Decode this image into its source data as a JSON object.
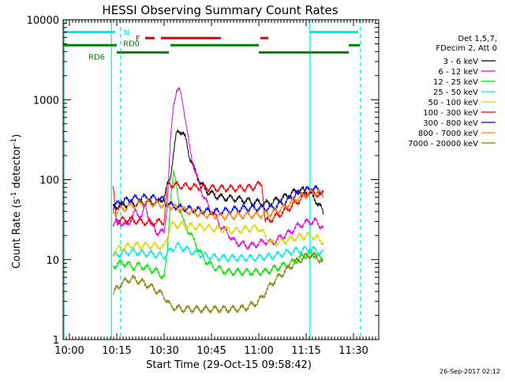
{
  "chart_data": {
    "type": "line",
    "title": "HESSI Observing Summary Count Rates",
    "xlabel": "Start Time (29-Oct-15 09:58:42)",
    "ylabel_main": "Count Rate (s",
    "ylabel_sup1": "-1",
    "ylabel_mid": " detector",
    "ylabel_sup2": "-1",
    "ylabel_end": ")",
    "y_scale": "log",
    "xlim": [
      598,
      698
    ],
    "ylim": [
      1,
      10000
    ],
    "x_ticks": [
      {
        "value": 600,
        "label": "10:00"
      },
      {
        "value": 615,
        "label": "10:15"
      },
      {
        "value": 630,
        "label": "10:30"
      },
      {
        "value": 645,
        "label": "10:45"
      },
      {
        "value": 660,
        "label": "11:00"
      },
      {
        "value": 675,
        "label": "11:15"
      },
      {
        "value": 690,
        "label": "11:30"
      }
    ],
    "y_ticks": [
      {
        "value": 1,
        "label": "1"
      },
      {
        "value": 10,
        "label": "10"
      },
      {
        "value": 100,
        "label": "100"
      },
      {
        "value": 1000,
        "label": "1000"
      },
      {
        "value": 10000,
        "label": "10000"
      }
    ],
    "legend": {
      "placement": "right",
      "header": [
        "Det 1,5,7,",
        "FDecim 2, Att 0"
      ],
      "entries": [
        {
          "label": "3 - 6 keV",
          "color": "#000000"
        },
        {
          "label": "6 - 12 keV",
          "color": "#e000e0"
        },
        {
          "label": "12 - 25 keV",
          "color": "#00e000"
        },
        {
          "label": "25 - 50 keV",
          "color": "#00e8e8"
        },
        {
          "label": "50 - 100 keV",
          "color": "#d8d800"
        },
        {
          "label": "100 - 300 keV",
          "color": "#e00000"
        },
        {
          "label": "300 - 800 keV",
          "color": "#0000e0"
        },
        {
          "label": "800 - 7000 keV",
          "color": "#ff8000"
        },
        {
          "label": "7000 - 20000 keV",
          "color": "#808000"
        }
      ]
    },
    "series": [
      {
        "name": "3 - 6 keV",
        "color": "#000000",
        "points": [
          [
            613.8,
            45
          ],
          [
            616,
            48
          ],
          [
            620,
            50
          ],
          [
            624,
            52
          ],
          [
            628,
            52
          ],
          [
            630,
            60
          ],
          [
            632,
            110
          ],
          [
            633,
            220
          ],
          [
            634,
            380
          ],
          [
            635,
            420
          ],
          [
            636,
            380
          ],
          [
            637,
            300
          ],
          [
            638,
            200
          ],
          [
            640,
            120
          ],
          [
            642,
            85
          ],
          [
            644,
            70
          ],
          [
            646,
            64
          ],
          [
            648,
            60
          ],
          [
            652,
            58
          ],
          [
            656,
            55
          ],
          [
            658,
            52
          ],
          [
            660,
            52
          ],
          [
            662,
            50
          ],
          [
            664,
            52
          ],
          [
            666,
            56
          ],
          [
            668,
            60
          ],
          [
            670,
            66
          ],
          [
            672,
            72
          ],
          [
            674,
            74
          ],
          [
            676,
            70
          ],
          [
            678,
            56
          ],
          [
            680,
            42
          ],
          [
            680.5,
            38
          ]
        ]
      },
      {
        "name": "6 - 12 keV",
        "color": "#e000e0",
        "points": [
          [
            613.8,
            28
          ],
          [
            616,
            30
          ],
          [
            618,
            26
          ],
          [
            621,
            40
          ],
          [
            623,
            34
          ],
          [
            624,
            50
          ],
          [
            625,
            35
          ],
          [
            626,
            26
          ],
          [
            628,
            22
          ],
          [
            630,
            22
          ],
          [
            631,
            50
          ],
          [
            632,
            300
          ],
          [
            633,
            900
          ],
          [
            634,
            1350
          ],
          [
            635,
            1250
          ],
          [
            636,
            900
          ],
          [
            637,
            500
          ],
          [
            638,
            250
          ],
          [
            640,
            120
          ],
          [
            642,
            70
          ],
          [
            644,
            46
          ],
          [
            646,
            36
          ],
          [
            648,
            26
          ],
          [
            650,
            22
          ],
          [
            652,
            17
          ],
          [
            654,
            16
          ],
          [
            656,
            15
          ],
          [
            658,
            15
          ],
          [
            660,
            16
          ],
          [
            662,
            17
          ],
          [
            664,
            16
          ],
          [
            666,
            18
          ],
          [
            668,
            20
          ],
          [
            670,
            22
          ],
          [
            672,
            26
          ],
          [
            674,
            28
          ],
          [
            676,
            30
          ],
          [
            678,
            30
          ],
          [
            680,
            26
          ],
          [
            680.5,
            24
          ]
        ]
      },
      {
        "name": "12 - 25 keV",
        "color": "#00e000",
        "points": [
          [
            613.8,
            8
          ],
          [
            615,
            9
          ],
          [
            618,
            9
          ],
          [
            620,
            8
          ],
          [
            622,
            8.5
          ],
          [
            624,
            8
          ],
          [
            626,
            7.5
          ],
          [
            628,
            7
          ],
          [
            630,
            6
          ],
          [
            631,
            12
          ],
          [
            632,
            60
          ],
          [
            633,
            120
          ],
          [
            634,
            80
          ],
          [
            635,
            45
          ],
          [
            636,
            30
          ],
          [
            638,
            22
          ],
          [
            640,
            16
          ],
          [
            642,
            11
          ],
          [
            644,
            9
          ],
          [
            646,
            8
          ],
          [
            650,
            7
          ],
          [
            654,
            7
          ],
          [
            658,
            7
          ],
          [
            662,
            7
          ],
          [
            666,
            8
          ],
          [
            670,
            9
          ],
          [
            674,
            11
          ],
          [
            676,
            12
          ],
          [
            678,
            11.5
          ],
          [
            680,
            10
          ],
          [
            680.5,
            10
          ]
        ]
      },
      {
        "name": "25 - 50 keV",
        "color": "#00e8e8",
        "points": [
          [
            613.8,
            11
          ],
          [
            616,
            12
          ],
          [
            620,
            12.5
          ],
          [
            624,
            12
          ],
          [
            628,
            11.5
          ],
          [
            630,
            11
          ],
          [
            632,
            13
          ],
          [
            634,
            15
          ],
          [
            636,
            14
          ],
          [
            640,
            12
          ],
          [
            644,
            11
          ],
          [
            648,
            10.5
          ],
          [
            652,
            10.5
          ],
          [
            656,
            10.5
          ],
          [
            660,
            10.5
          ],
          [
            664,
            11
          ],
          [
            668,
            12
          ],
          [
            672,
            13
          ],
          [
            676,
            13.5
          ],
          [
            678,
            13
          ],
          [
            680,
            12
          ],
          [
            680.5,
            12
          ]
        ]
      },
      {
        "name": "50 - 100 keV",
        "color": "#d8d800",
        "points": [
          [
            613.8,
            12
          ],
          [
            616,
            14
          ],
          [
            620,
            15
          ],
          [
            624,
            15
          ],
          [
            628,
            15
          ],
          [
            630,
            14
          ],
          [
            632,
            27
          ],
          [
            636,
            27
          ],
          [
            640,
            26
          ],
          [
            644,
            25
          ],
          [
            648,
            24
          ],
          [
            652,
            23
          ],
          [
            656,
            24
          ],
          [
            660,
            25
          ],
          [
            662,
            20
          ],
          [
            664,
            16
          ],
          [
            668,
            17
          ],
          [
            672,
            19
          ],
          [
            676,
            20
          ],
          [
            678,
            19
          ],
          [
            680,
            17
          ],
          [
            680.5,
            17
          ]
        ]
      },
      {
        "name": "100 - 300 keV",
        "color": "#e00000",
        "points": [
          [
            613.8,
            80
          ],
          [
            615,
            30
          ],
          [
            618,
            32
          ],
          [
            622,
            30
          ],
          [
            626,
            29
          ],
          [
            630,
            30
          ],
          [
            631,
            90
          ],
          [
            634,
            85
          ],
          [
            638,
            82
          ],
          [
            642,
            80
          ],
          [
            646,
            78
          ],
          [
            650,
            78
          ],
          [
            654,
            78
          ],
          [
            658,
            80
          ],
          [
            661,
            90
          ],
          [
            662,
            30
          ],
          [
            664,
            32
          ],
          [
            668,
            40
          ],
          [
            672,
            52
          ],
          [
            676,
            70
          ],
          [
            678,
            68
          ],
          [
            680,
            62
          ],
          [
            680.5,
            60
          ]
        ]
      },
      {
        "name": "300 - 800 keV",
        "color": "#0000e0",
        "points": [
          [
            613.8,
            45
          ],
          [
            616,
            52
          ],
          [
            620,
            58
          ],
          [
            624,
            60
          ],
          [
            628,
            58
          ],
          [
            630,
            55
          ],
          [
            632,
            48
          ],
          [
            636,
            44
          ],
          [
            640,
            42
          ],
          [
            644,
            40
          ],
          [
            648,
            40
          ],
          [
            652,
            42
          ],
          [
            656,
            44
          ],
          [
            660,
            44
          ],
          [
            664,
            44
          ],
          [
            668,
            52
          ],
          [
            672,
            66
          ],
          [
            676,
            76
          ],
          [
            678,
            76
          ],
          [
            680,
            72
          ],
          [
            680.5,
            70
          ]
        ]
      },
      {
        "name": "800 - 7000 keV",
        "color": "#ff8000",
        "points": [
          [
            613.8,
            38
          ],
          [
            616,
            42
          ],
          [
            620,
            48
          ],
          [
            624,
            52
          ],
          [
            628,
            50
          ],
          [
            630,
            48
          ],
          [
            632,
            46
          ],
          [
            636,
            42
          ],
          [
            640,
            38
          ],
          [
            644,
            36
          ],
          [
            648,
            35
          ],
          [
            652,
            35
          ],
          [
            656,
            36
          ],
          [
            660,
            36
          ],
          [
            664,
            38
          ],
          [
            668,
            45
          ],
          [
            672,
            58
          ],
          [
            676,
            68
          ],
          [
            678,
            70
          ],
          [
            680,
            66
          ],
          [
            680.5,
            64
          ]
        ]
      },
      {
        "name": "7000 - 20000 keV",
        "color": "#808000",
        "points": [
          [
            613.8,
            3.5
          ],
          [
            615,
            4.5
          ],
          [
            618,
            5.5
          ],
          [
            620,
            5.8
          ],
          [
            622,
            5.4
          ],
          [
            624,
            5
          ],
          [
            626,
            4.5
          ],
          [
            628,
            4
          ],
          [
            630,
            3.5
          ],
          [
            632,
            2.6
          ],
          [
            636,
            2.4
          ],
          [
            640,
            2.4
          ],
          [
            644,
            2.4
          ],
          [
            648,
            2.4
          ],
          [
            652,
            2.4
          ],
          [
            656,
            2.5
          ],
          [
            660,
            3
          ],
          [
            664,
            5
          ],
          [
            668,
            7
          ],
          [
            672,
            9.5
          ],
          [
            676,
            11.5
          ],
          [
            678,
            11
          ],
          [
            680,
            9.5
          ],
          [
            680.5,
            9
          ]
        ]
      }
    ],
    "status_bars": [
      {
        "name": "N",
        "label": "N",
        "color": "#00e8e8",
        "row_value": 7000,
        "segments": [
          [
            598,
            614.5
          ],
          [
            676,
            691.5
          ]
        ]
      },
      {
        "name": "F",
        "label": "F",
        "color": "#e00000",
        "row_value": 5900,
        "segments": [
          [
            624,
            627
          ],
          [
            629,
            632
          ],
          [
            632,
            648
          ],
          [
            660.5,
            663
          ]
        ]
      },
      {
        "name": "RD0",
        "label": "RD0",
        "color": "#008000",
        "row_value": 4800,
        "segments": [
          [
            598,
            615
          ],
          [
            632,
            660
          ],
          [
            688.5,
            692
          ]
        ]
      },
      {
        "name": "RD6",
        "label": "RD6",
        "color": "#008000",
        "row_value": 3900,
        "segments": [
          [
            615,
            631.5
          ],
          [
            660,
            688.5
          ]
        ]
      }
    ],
    "vertical_markers": [
      {
        "value": 598.3,
        "style": "solid",
        "color": "#00e8e8"
      },
      {
        "value": 613.3,
        "style": "solid",
        "color": "#00e8e8"
      },
      {
        "value": 616.2,
        "style": "dashed",
        "color": "#00e8e8"
      },
      {
        "value": 676.2,
        "style": "solid",
        "color": "#00e8e8"
      },
      {
        "value": 692.2,
        "style": "dashed",
        "color": "#00e8e8"
      }
    ]
  },
  "footer": {
    "date": "26-Sep-2017 02:12"
  }
}
